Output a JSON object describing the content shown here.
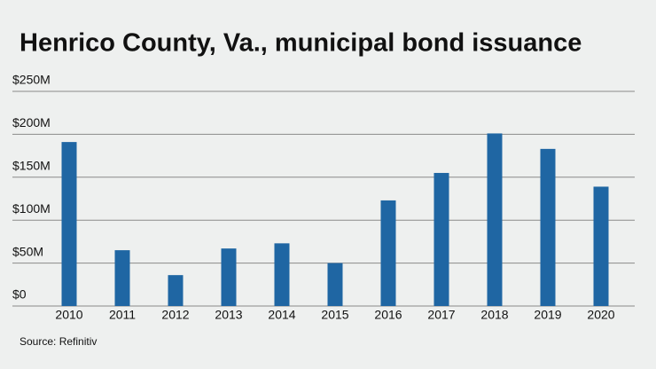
{
  "chart_data": {
    "type": "bar",
    "title": "Henrico County, Va., municipal bond issuance",
    "categories": [
      "2010",
      "2011",
      "2012",
      "2013",
      "2014",
      "2015",
      "2016",
      "2017",
      "2018",
      "2019",
      "2020"
    ],
    "values": [
      191,
      65,
      36,
      67,
      73,
      50,
      123,
      155,
      201,
      183,
      139
    ],
    "color": "#1f66a3",
    "ylim": [
      0,
      250
    ],
    "yticks": [
      {
        "value": 0,
        "label": "$0"
      },
      {
        "value": 50,
        "label": "$50M"
      },
      {
        "value": 100,
        "label": "$100M"
      },
      {
        "value": 150,
        "label": "$150M"
      },
      {
        "value": 200,
        "label": "$200M"
      },
      {
        "value": 250,
        "label": "$250M"
      }
    ],
    "grid": true,
    "source": "Source: Refinitiv"
  }
}
